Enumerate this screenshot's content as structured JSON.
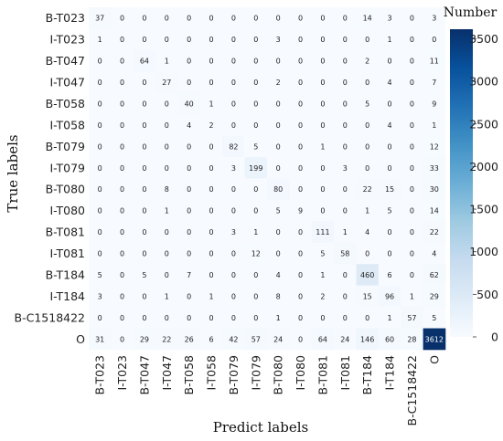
{
  "chart_data": {
    "type": "heatmap",
    "xlabel": "Predict labels",
    "ylabel": "True labels",
    "colorbar_title": "Number",
    "colorbar_ticks": [
      0,
      500,
      1000,
      1500,
      2000,
      2500,
      3000,
      3500
    ],
    "color_range": [
      0,
      3612
    ],
    "colors": {
      "low": "#f7fbff",
      "high": "#08306b"
    },
    "labels": [
      "B-T023",
      "I-T023",
      "B-T047",
      "I-T047",
      "B-T058",
      "I-T058",
      "B-T079",
      "I-T079",
      "B-T080",
      "I-T080",
      "B-T081",
      "I-T081",
      "B-T184",
      "I-T184",
      "B-C1518422",
      "O"
    ],
    "matrix": [
      [
        37,
        0,
        0,
        0,
        0,
        0,
        0,
        0,
        0,
        0,
        0,
        0,
        14,
        3,
        0,
        3
      ],
      [
        1,
        0,
        0,
        0,
        0,
        0,
        0,
        0,
        3,
        0,
        0,
        0,
        0,
        1,
        0,
        0
      ],
      [
        0,
        0,
        64,
        1,
        0,
        0,
        0,
        0,
        0,
        0,
        0,
        0,
        2,
        0,
        0,
        11
      ],
      [
        0,
        0,
        0,
        27,
        0,
        0,
        0,
        0,
        2,
        0,
        0,
        0,
        0,
        4,
        0,
        7
      ],
      [
        0,
        0,
        0,
        0,
        40,
        1,
        0,
        0,
        0,
        0,
        0,
        0,
        5,
        0,
        0,
        9
      ],
      [
        0,
        0,
        0,
        0,
        4,
        2,
        0,
        0,
        0,
        0,
        0,
        0,
        0,
        4,
        0,
        1
      ],
      [
        0,
        0,
        0,
        0,
        0,
        0,
        82,
        5,
        0,
        0,
        1,
        0,
        0,
        0,
        0,
        12
      ],
      [
        0,
        0,
        0,
        0,
        0,
        0,
        3,
        199,
        0,
        0,
        0,
        3,
        0,
        0,
        0,
        33
      ],
      [
        0,
        0,
        0,
        8,
        0,
        0,
        0,
        0,
        80,
        0,
        0,
        0,
        22,
        15,
        0,
        30
      ],
      [
        0,
        0,
        0,
        1,
        0,
        0,
        0,
        0,
        5,
        9,
        0,
        0,
        1,
        5,
        0,
        14
      ],
      [
        0,
        0,
        0,
        0,
        0,
        0,
        3,
        1,
        0,
        0,
        111,
        1,
        4,
        0,
        0,
        22
      ],
      [
        0,
        0,
        0,
        0,
        0,
        0,
        0,
        12,
        0,
        0,
        5,
        58,
        0,
        0,
        0,
        4
      ],
      [
        5,
        0,
        5,
        0,
        7,
        0,
        0,
        0,
        4,
        0,
        1,
        0,
        460,
        6,
        0,
        62
      ],
      [
        3,
        0,
        0,
        1,
        0,
        1,
        0,
        0,
        8,
        0,
        2,
        0,
        15,
        96,
        1,
        29
      ],
      [
        0,
        0,
        0,
        0,
        0,
        0,
        0,
        0,
        1,
        0,
        0,
        0,
        0,
        1,
        57,
        5
      ],
      [
        31,
        0,
        29,
        22,
        26,
        6,
        42,
        57,
        24,
        0,
        64,
        24,
        146,
        60,
        28,
        3612
      ]
    ]
  }
}
